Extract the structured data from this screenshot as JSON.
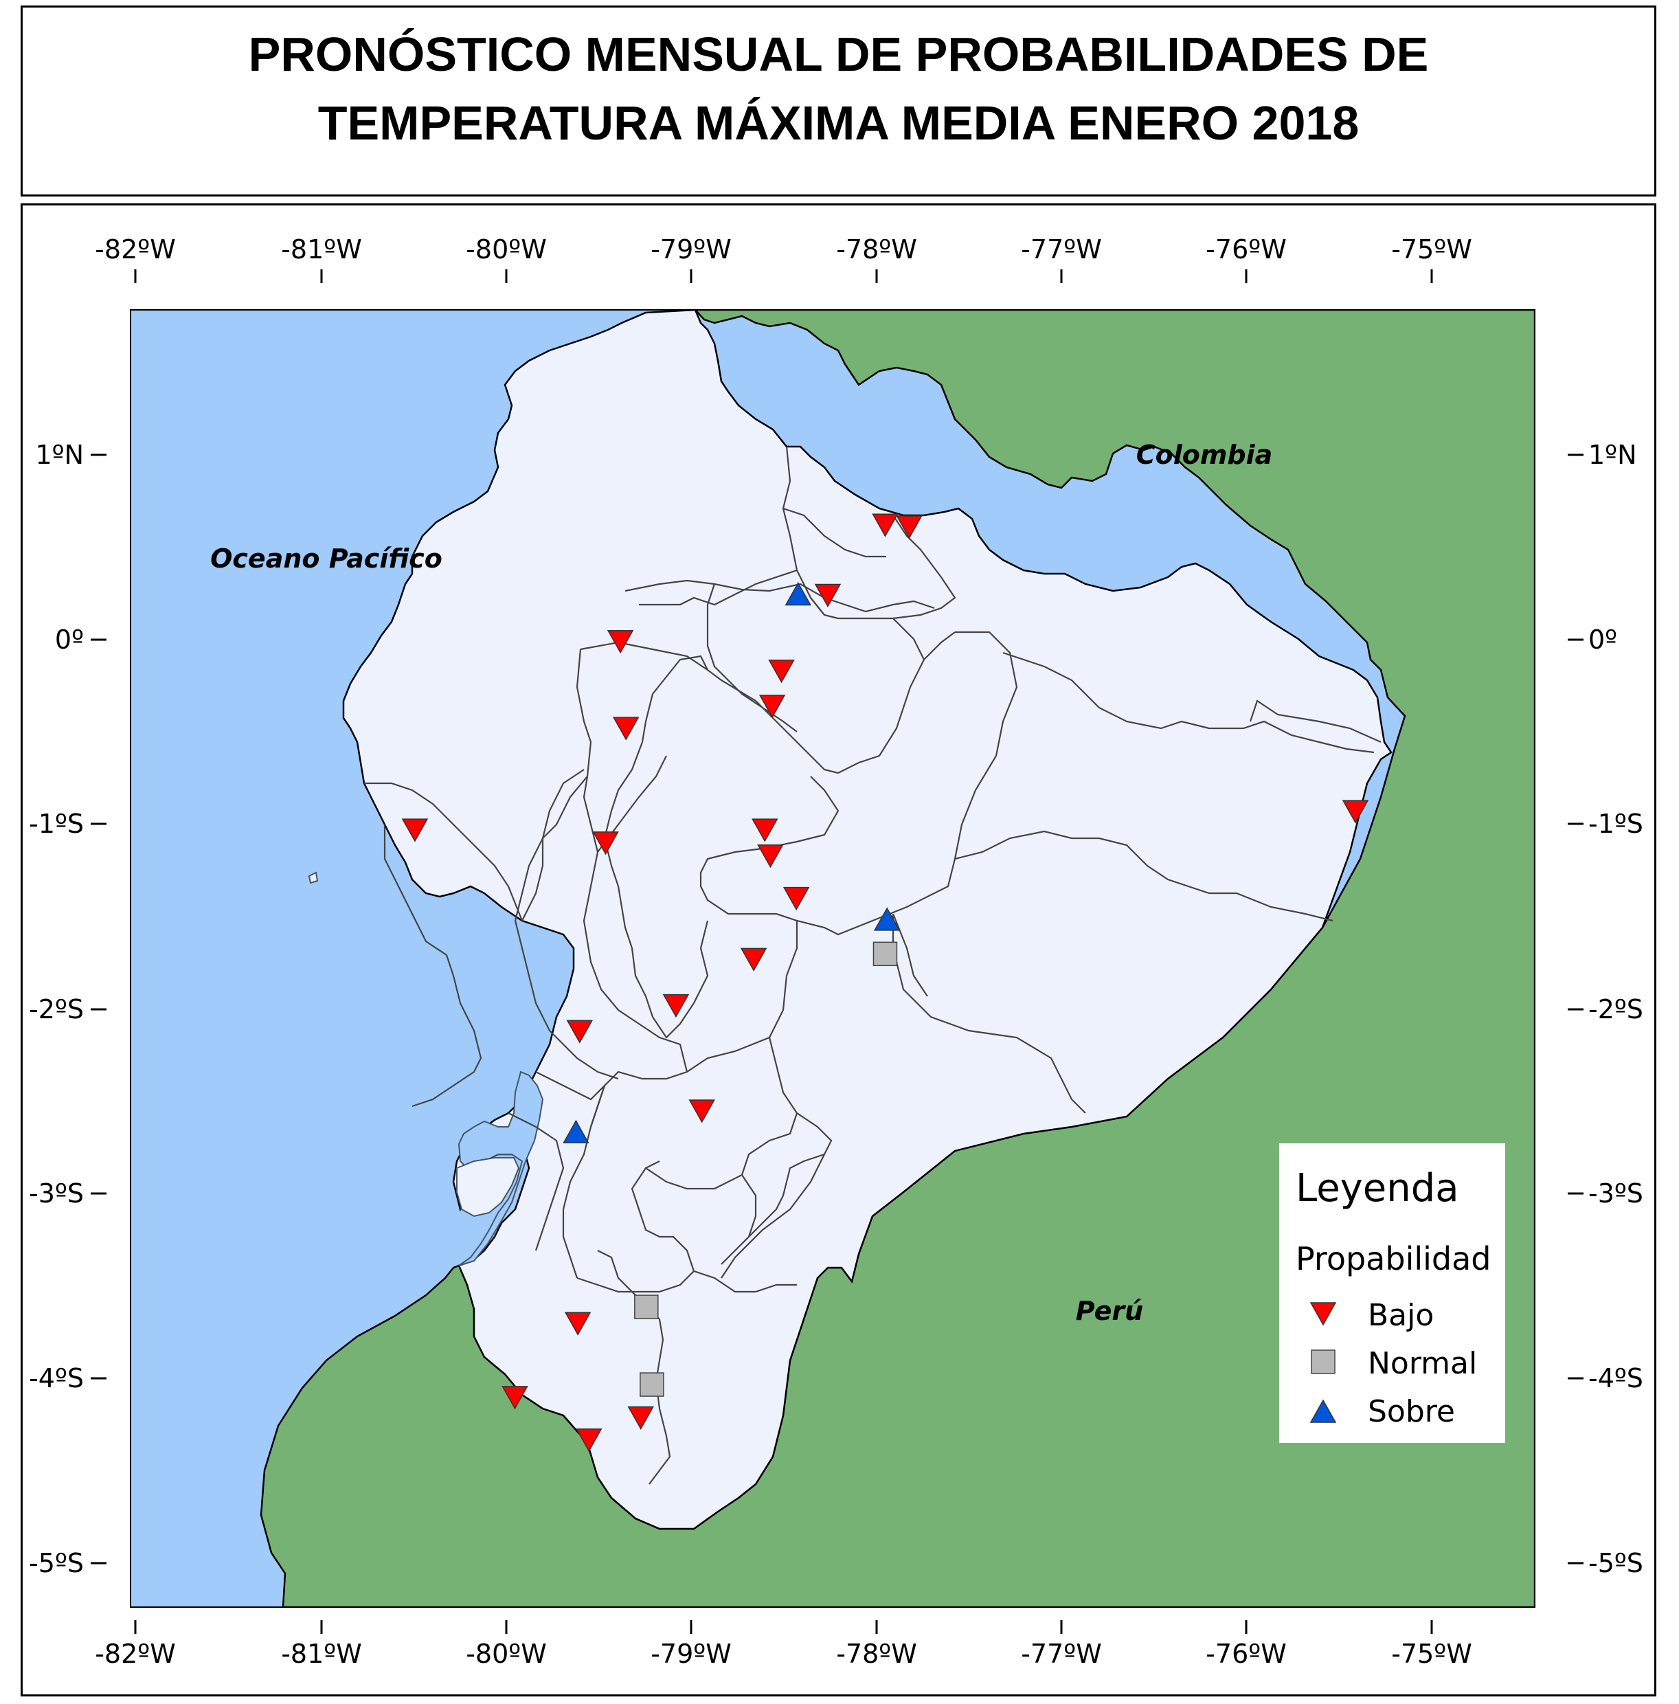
{
  "title": {
    "line1": "PRONÓSTICO MENSUAL DE PROBABILIDADES DE",
    "line2": "TEMPERATURA MÁXIMA MEDIA  ENERO 2018"
  },
  "axes": {
    "longitude_ticks": [
      "-82ºW",
      "-81ºW",
      "-80ºW",
      "-79ºW",
      "-78ºW",
      "-77ºW",
      "-76ºW",
      "-75ºW"
    ],
    "latitude_ticks": [
      "1ºN",
      "0º",
      "-1ºS",
      "-2ºS",
      "-3ºS",
      "-4ºS",
      "-5ºS"
    ]
  },
  "places": {
    "ocean": "Oceano Pacífico",
    "colombia": "Colombia",
    "peru": "Perú"
  },
  "legend": {
    "title": "Leyenda",
    "subtitle": "Propabilidad",
    "items": [
      {
        "label": "Bajo",
        "symbol": "triangle-down",
        "color": "#ff0000"
      },
      {
        "label": "Normal",
        "symbol": "square",
        "color": "#b8b8b8"
      },
      {
        "label": "Sobre",
        "symbol": "triangle-up",
        "color": "#0055dd"
      }
    ]
  },
  "colors": {
    "ocean": "#a0cbfb",
    "neighbors": "#76b274",
    "ecuador": "#eef2fd",
    "bajo": "#ff0000",
    "normal": "#b8b8b8",
    "sobre": "#0055dd"
  },
  "stations": [
    {
      "category": "Bajo",
      "lon": -77.95,
      "lat": 0.62
    },
    {
      "category": "Bajo",
      "lon": -77.82,
      "lat": 0.61
    },
    {
      "category": "Sobre",
      "lon": -78.42,
      "lat": 0.24
    },
    {
      "category": "Bajo",
      "lon": -78.26,
      "lat": 0.24
    },
    {
      "category": "Bajo",
      "lon": -79.38,
      "lat": -0.01
    },
    {
      "category": "Bajo",
      "lon": -78.51,
      "lat": -0.17
    },
    {
      "category": "Bajo",
      "lon": -78.56,
      "lat": -0.36
    },
    {
      "category": "Bajo",
      "lon": -79.35,
      "lat": -0.48
    },
    {
      "category": "Bajo",
      "lon": -75.41,
      "lat": -0.93
    },
    {
      "category": "Bajo",
      "lon": -80.49,
      "lat": -1.03
    },
    {
      "category": "Bajo",
      "lon": -78.6,
      "lat": -1.03
    },
    {
      "category": "Bajo",
      "lon": -79.46,
      "lat": -1.1
    },
    {
      "category": "Bajo",
      "lon": -78.57,
      "lat": -1.17
    },
    {
      "category": "Bajo",
      "lon": -78.43,
      "lat": -1.4
    },
    {
      "category": "Sobre",
      "lon": -77.94,
      "lat": -1.52
    },
    {
      "category": "Normal",
      "lon": -77.95,
      "lat": -1.7
    },
    {
      "category": "Bajo",
      "lon": -78.66,
      "lat": -1.73
    },
    {
      "category": "Bajo",
      "lon": -79.08,
      "lat": -1.98
    },
    {
      "category": "Bajo",
      "lon": -79.6,
      "lat": -2.12
    },
    {
      "category": "Bajo",
      "lon": -78.94,
      "lat": -2.55
    },
    {
      "category": "Sobre",
      "lon": -79.62,
      "lat": -2.67
    },
    {
      "category": "Normal",
      "lon": -79.24,
      "lat": -3.61
    },
    {
      "category": "Bajo",
      "lon": -79.61,
      "lat": -3.7
    },
    {
      "category": "Normal",
      "lon": -79.21,
      "lat": -4.03
    },
    {
      "category": "Bajo",
      "lon": -79.95,
      "lat": -4.1
    },
    {
      "category": "Bajo",
      "lon": -79.27,
      "lat": -4.21
    },
    {
      "category": "Bajo",
      "lon": -79.55,
      "lat": -4.33
    }
  ]
}
